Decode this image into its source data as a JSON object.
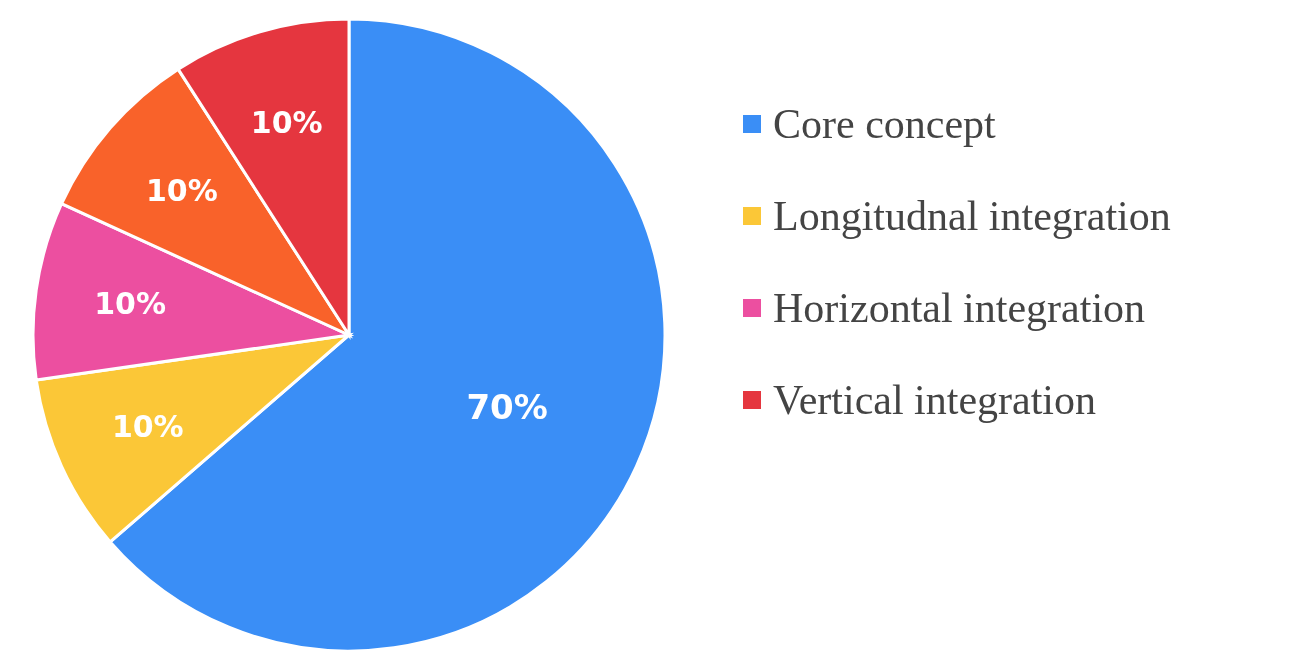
{
  "chart_data": {
    "type": "pie",
    "categories": [
      "Core concept",
      "Longitudnal integration",
      "Horizontal integration",
      null,
      "Vertical integration"
    ],
    "values": [
      70,
      10,
      10,
      10,
      10
    ],
    "value_labels": [
      "70%",
      "10%",
      "10%",
      "10%",
      "10%"
    ],
    "colors": [
      "#3a8ef6",
      "#fbc737",
      "#ec4fa0",
      "#f9622a",
      "#e5363f"
    ],
    "legend": "right"
  }
}
